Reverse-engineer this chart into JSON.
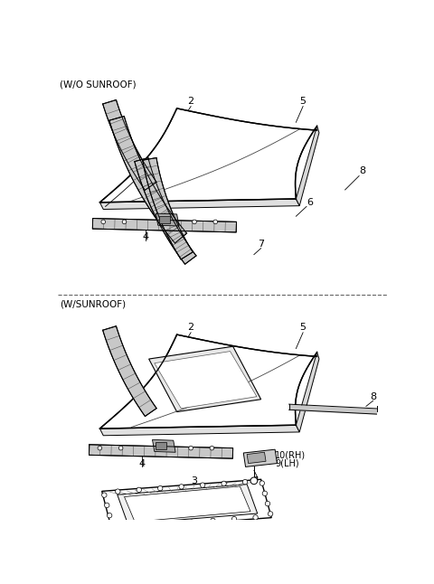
{
  "background_color": "#ffffff",
  "section1_label": "(W/O SUNROOF)",
  "section2_label": "(W/SUNROOF)",
  "line_color": "#000000",
  "label_fontsize": 8,
  "section_label_fontsize": 7.5,
  "hatch_color": "#888888"
}
